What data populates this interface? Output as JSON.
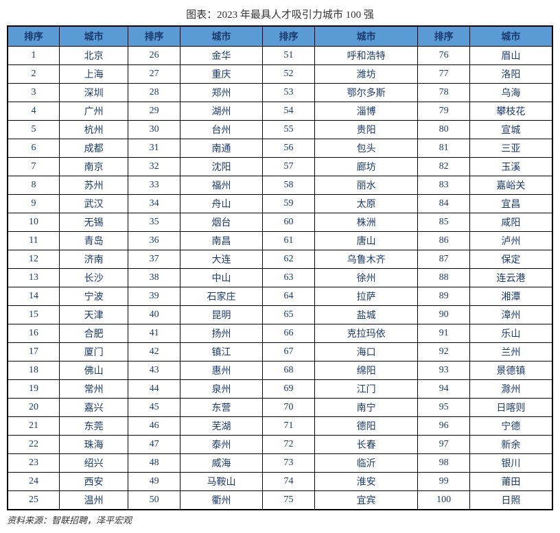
{
  "title": "图表：2023 年最具人才吸引力城市 100 强",
  "header_labels": {
    "rank": "排序",
    "city": "城市"
  },
  "source": "资料来源：智联招聘，泽平宏观",
  "colors": {
    "header_bg": "#5b9bd5",
    "text": "#1a3a6e",
    "border": "#000000"
  },
  "columns": [
    {
      "header_rank": "排序",
      "header_city": "城市",
      "rows": [
        {
          "rank": "1",
          "city": "北京"
        },
        {
          "rank": "2",
          "city": "上海"
        },
        {
          "rank": "3",
          "city": "深圳"
        },
        {
          "rank": "4",
          "city": "广州"
        },
        {
          "rank": "5",
          "city": "杭州"
        },
        {
          "rank": "6",
          "city": "成都"
        },
        {
          "rank": "7",
          "city": "南京"
        },
        {
          "rank": "8",
          "city": "苏州"
        },
        {
          "rank": "9",
          "city": "武汉"
        },
        {
          "rank": "10",
          "city": "无锡"
        },
        {
          "rank": "11",
          "city": "青岛"
        },
        {
          "rank": "12",
          "city": "济南"
        },
        {
          "rank": "13",
          "city": "长沙"
        },
        {
          "rank": "14",
          "city": "宁波"
        },
        {
          "rank": "15",
          "city": "天津"
        },
        {
          "rank": "16",
          "city": "合肥"
        },
        {
          "rank": "17",
          "city": "厦门"
        },
        {
          "rank": "18",
          "city": "佛山"
        },
        {
          "rank": "19",
          "city": "常州"
        },
        {
          "rank": "20",
          "city": "嘉兴"
        },
        {
          "rank": "21",
          "city": "东莞"
        },
        {
          "rank": "22",
          "city": "珠海"
        },
        {
          "rank": "23",
          "city": "绍兴"
        },
        {
          "rank": "24",
          "city": "西安"
        },
        {
          "rank": "25",
          "city": "温州"
        }
      ]
    },
    {
      "header_rank": "排序",
      "header_city": "城市",
      "rows": [
        {
          "rank": "26",
          "city": "金华"
        },
        {
          "rank": "27",
          "city": "重庆"
        },
        {
          "rank": "28",
          "city": "郑州"
        },
        {
          "rank": "29",
          "city": "湖州"
        },
        {
          "rank": "30",
          "city": "台州"
        },
        {
          "rank": "31",
          "city": "南通"
        },
        {
          "rank": "32",
          "city": "沈阳"
        },
        {
          "rank": "33",
          "city": "福州"
        },
        {
          "rank": "34",
          "city": "舟山"
        },
        {
          "rank": "35",
          "city": "烟台"
        },
        {
          "rank": "36",
          "city": "南昌"
        },
        {
          "rank": "37",
          "city": "大连"
        },
        {
          "rank": "38",
          "city": "中山"
        },
        {
          "rank": "39",
          "city": "石家庄"
        },
        {
          "rank": "40",
          "city": "昆明"
        },
        {
          "rank": "41",
          "city": "扬州"
        },
        {
          "rank": "42",
          "city": "镇江"
        },
        {
          "rank": "43",
          "city": "惠州"
        },
        {
          "rank": "44",
          "city": "泉州"
        },
        {
          "rank": "45",
          "city": "东营"
        },
        {
          "rank": "46",
          "city": "芜湖"
        },
        {
          "rank": "47",
          "city": "泰州"
        },
        {
          "rank": "48",
          "city": "威海"
        },
        {
          "rank": "49",
          "city": "马鞍山"
        },
        {
          "rank": "50",
          "city": "衢州"
        }
      ]
    },
    {
      "header_rank": "排序",
      "header_city": "城市",
      "rows": [
        {
          "rank": "51",
          "city": "呼和浩特"
        },
        {
          "rank": "52",
          "city": "潍坊"
        },
        {
          "rank": "53",
          "city": "鄂尔多斯"
        },
        {
          "rank": "54",
          "city": "淄博"
        },
        {
          "rank": "55",
          "city": "贵阳"
        },
        {
          "rank": "56",
          "city": "包头"
        },
        {
          "rank": "57",
          "city": "廊坊"
        },
        {
          "rank": "58",
          "city": "丽水"
        },
        {
          "rank": "59",
          "city": "太原"
        },
        {
          "rank": "60",
          "city": "株洲"
        },
        {
          "rank": "61",
          "city": "唐山"
        },
        {
          "rank": "62",
          "city": "乌鲁木齐"
        },
        {
          "rank": "63",
          "city": "徐州"
        },
        {
          "rank": "64",
          "city": "拉萨"
        },
        {
          "rank": "65",
          "city": "盐城"
        },
        {
          "rank": "66",
          "city": "克拉玛依"
        },
        {
          "rank": "67",
          "city": "海口"
        },
        {
          "rank": "68",
          "city": "绵阳"
        },
        {
          "rank": "69",
          "city": "江门"
        },
        {
          "rank": "70",
          "city": "南宁"
        },
        {
          "rank": "71",
          "city": "德阳"
        },
        {
          "rank": "72",
          "city": "长春"
        },
        {
          "rank": "73",
          "city": "临沂"
        },
        {
          "rank": "74",
          "city": "淮安"
        },
        {
          "rank": "75",
          "city": "宜宾"
        }
      ]
    },
    {
      "header_rank": "排序",
      "header_city": "城市",
      "rows": [
        {
          "rank": "76",
          "city": "眉山"
        },
        {
          "rank": "77",
          "city": "洛阳"
        },
        {
          "rank": "78",
          "city": "乌海"
        },
        {
          "rank": "79",
          "city": "攀枝花"
        },
        {
          "rank": "80",
          "city": "宣城"
        },
        {
          "rank": "81",
          "city": "三亚"
        },
        {
          "rank": "82",
          "city": "玉溪"
        },
        {
          "rank": "83",
          "city": "嘉峪关"
        },
        {
          "rank": "84",
          "city": "宜昌"
        },
        {
          "rank": "85",
          "city": "咸阳"
        },
        {
          "rank": "86",
          "city": "泸州"
        },
        {
          "rank": "87",
          "city": "保定"
        },
        {
          "rank": "88",
          "city": "连云港"
        },
        {
          "rank": "89",
          "city": "湘潭"
        },
        {
          "rank": "90",
          "city": "漳州"
        },
        {
          "rank": "91",
          "city": "乐山"
        },
        {
          "rank": "92",
          "city": "兰州"
        },
        {
          "rank": "93",
          "city": "景德镇"
        },
        {
          "rank": "94",
          "city": "滁州"
        },
        {
          "rank": "95",
          "city": "日喀则"
        },
        {
          "rank": "96",
          "city": "宁德"
        },
        {
          "rank": "97",
          "city": "新余"
        },
        {
          "rank": "98",
          "city": "银川"
        },
        {
          "rank": "99",
          "city": "莆田"
        },
        {
          "rank": "100",
          "city": "日照"
        }
      ]
    }
  ]
}
